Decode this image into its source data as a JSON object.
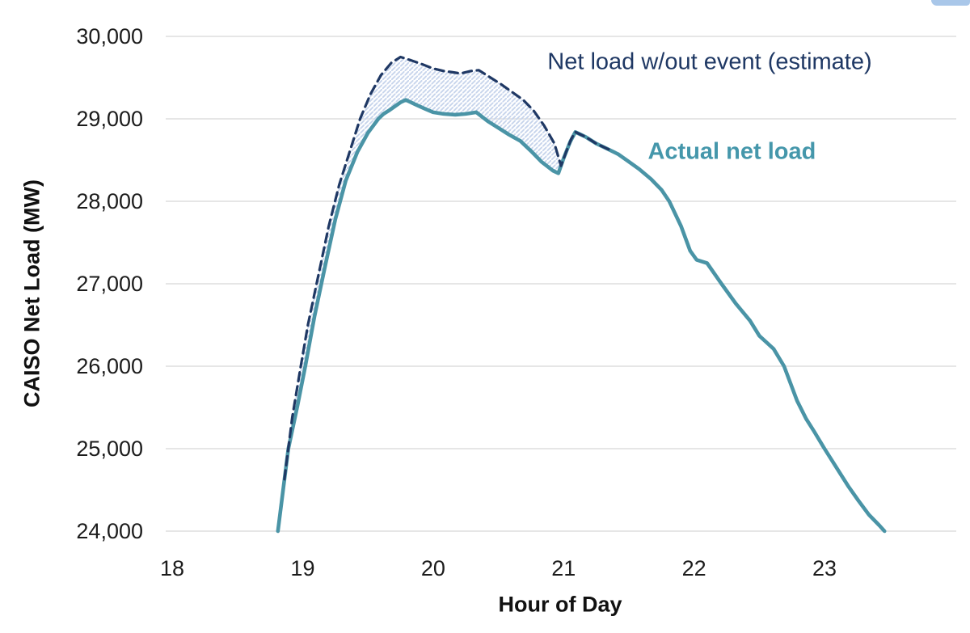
{
  "chart_data": {
    "type": "line",
    "title": "",
    "xlabel": "Hour of Day",
    "ylabel": "CAISO Net Load (MW)",
    "xlim": [
      17.95,
      24.01
    ],
    "ylim": [
      24000,
      30000
    ],
    "grid": "horizontal",
    "grid_color": "#d8d8d8",
    "x_ticks": [
      18,
      19,
      20,
      21,
      22,
      23
    ],
    "y_ticks": [
      24000,
      25000,
      26000,
      27000,
      28000,
      29000,
      30000
    ],
    "y_tick_labels": [
      "24,000",
      "25,000",
      "26,000",
      "27,000",
      "28,000",
      "29,000",
      "30,000"
    ],
    "series": [
      {
        "name": "Net load w/out event (estimate)",
        "color": "#1f3864",
        "style": "dashed",
        "stroke_width": 3.2,
        "dash": "11 6.5",
        "points": [
          [
            18.86,
            24630
          ],
          [
            18.92,
            25380
          ],
          [
            18.98,
            25950
          ],
          [
            19.04,
            26500
          ],
          [
            19.12,
            27100
          ],
          [
            19.2,
            27700
          ],
          [
            19.28,
            28200
          ],
          [
            19.36,
            28600
          ],
          [
            19.44,
            29000
          ],
          [
            19.52,
            29300
          ],
          [
            19.6,
            29530
          ],
          [
            19.68,
            29680
          ],
          [
            19.75,
            29750
          ],
          [
            19.83,
            29710
          ],
          [
            19.92,
            29660
          ],
          [
            20.0,
            29610
          ],
          [
            20.08,
            29580
          ],
          [
            20.15,
            29565
          ],
          [
            20.21,
            29550
          ],
          [
            20.29,
            29580
          ],
          [
            20.35,
            29590
          ],
          [
            20.44,
            29500
          ],
          [
            20.52,
            29420
          ],
          [
            20.6,
            29330
          ],
          [
            20.69,
            29230
          ],
          [
            20.77,
            29100
          ],
          [
            20.85,
            28920
          ],
          [
            20.93,
            28700
          ],
          [
            20.98,
            28430
          ],
          [
            21.02,
            28600
          ],
          [
            21.06,
            28760
          ],
          [
            21.09,
            28840
          ],
          [
            21.13,
            28810
          ],
          [
            21.17,
            28780
          ],
          [
            21.25,
            28700
          ],
          [
            21.33,
            28640
          ],
          [
            21.38,
            28610
          ]
        ]
      },
      {
        "name": "Actual net load",
        "color": "#4a94a6",
        "style": "solid",
        "stroke_width": 4.6,
        "dash": "",
        "points": [
          [
            18.81,
            24000
          ],
          [
            18.85,
            24500
          ],
          [
            18.89,
            25000
          ],
          [
            18.96,
            25520
          ],
          [
            19.02,
            26000
          ],
          [
            19.09,
            26600
          ],
          [
            19.17,
            27200
          ],
          [
            19.25,
            27780
          ],
          [
            19.33,
            28250
          ],
          [
            19.42,
            28600
          ],
          [
            19.5,
            28830
          ],
          [
            19.58,
            29000
          ],
          [
            19.62,
            29060
          ],
          [
            19.67,
            29110
          ],
          [
            19.75,
            29200
          ],
          [
            19.79,
            29230
          ],
          [
            19.87,
            29170
          ],
          [
            19.94,
            29120
          ],
          [
            20.0,
            29080
          ],
          [
            20.08,
            29060
          ],
          [
            20.17,
            29050
          ],
          [
            20.25,
            29060
          ],
          [
            20.33,
            29080
          ],
          [
            20.42,
            28970
          ],
          [
            20.5,
            28890
          ],
          [
            20.58,
            28810
          ],
          [
            20.67,
            28730
          ],
          [
            20.75,
            28610
          ],
          [
            20.83,
            28480
          ],
          [
            20.92,
            28370
          ],
          [
            20.96,
            28340
          ],
          [
            21.0,
            28520
          ],
          [
            21.05,
            28720
          ],
          [
            21.09,
            28840
          ],
          [
            21.13,
            28810
          ],
          [
            21.17,
            28780
          ],
          [
            21.25,
            28700
          ],
          [
            21.33,
            28640
          ],
          [
            21.42,
            28570
          ],
          [
            21.5,
            28480
          ],
          [
            21.58,
            28390
          ],
          [
            21.67,
            28270
          ],
          [
            21.75,
            28140
          ],
          [
            21.81,
            28000
          ],
          [
            21.9,
            27700
          ],
          [
            21.97,
            27400
          ],
          [
            22.02,
            27290
          ],
          [
            22.1,
            27250
          ],
          [
            22.21,
            27000
          ],
          [
            22.32,
            26760
          ],
          [
            22.43,
            26550
          ],
          [
            22.5,
            26370
          ],
          [
            22.61,
            26210
          ],
          [
            22.69,
            26000
          ],
          [
            22.79,
            25580
          ],
          [
            22.86,
            25360
          ],
          [
            22.92,
            25210
          ],
          [
            23.0,
            25000
          ],
          [
            23.04,
            24900
          ],
          [
            23.1,
            24750
          ],
          [
            23.18,
            24550
          ],
          [
            23.26,
            24370
          ],
          [
            23.34,
            24200
          ],
          [
            23.42,
            24070
          ],
          [
            23.46,
            24000
          ]
        ]
      }
    ],
    "shaded_region": {
      "between": [
        "Net load w/out event (estimate)",
        "Actual net load"
      ],
      "x_range": [
        18.86,
        20.98
      ],
      "pattern": "diagonal-hatch",
      "color": "#c8d5ec"
    },
    "annotations": [
      {
        "text": "Net load w/out event (estimate)",
        "color": "#1f3864",
        "bold": false,
        "hour": 22.12,
        "value": 29690
      },
      {
        "text": "Actual net load",
        "color": "#4597ab",
        "bold": true,
        "hour": 22.29,
        "value": 28600
      }
    ]
  }
}
